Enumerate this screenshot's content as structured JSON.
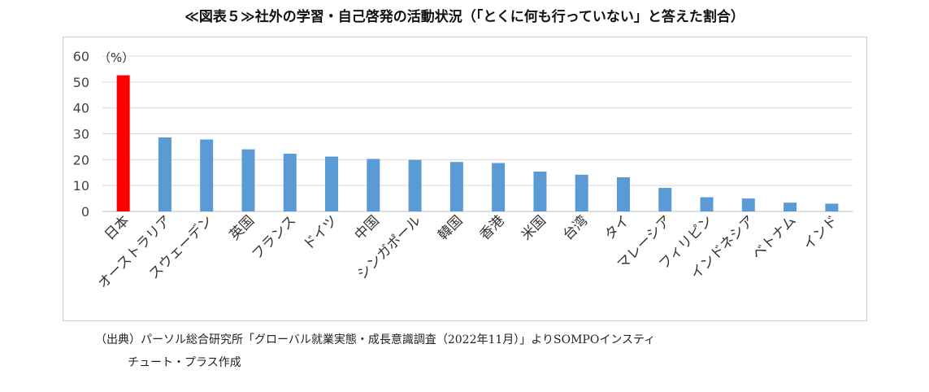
{
  "title": "≪図表５≫社外の学習・自己啓発の活動状況（「とくに何も行っていない」と答えた割合）",
  "source": {
    "line1": "（出典）パーソル総合研究所「グローバル就業実態・成長意識調査（2022年11月）」よりSOMPOインスティ",
    "line2": "チュート・プラス作成"
  },
  "chart_data": {
    "type": "bar",
    "title": "≪図表５≫社外の学習・自己啓発の活動状況（「とくに何も行っていない」と答えた割合）",
    "unit_label": "（%）",
    "categories": [
      "日本",
      "オーストラリア",
      "スウェーデン",
      "英国",
      "フランス",
      "ドイツ",
      "中国",
      "シンガポール",
      "韓国",
      "香港",
      "米国",
      "台湾",
      "タイ",
      "マレーシア",
      "フィリピン",
      "インドネシア",
      "ベトナム",
      "インド"
    ],
    "values": [
      52.6,
      28.6,
      27.8,
      24.0,
      22.3,
      21.2,
      20.3,
      19.9,
      19.1,
      18.7,
      15.4,
      14.2,
      13.2,
      9.1,
      5.5,
      5.0,
      3.4,
      3.0
    ],
    "colors": [
      "#ff0000",
      "#5b9bd5",
      "#5b9bd5",
      "#5b9bd5",
      "#5b9bd5",
      "#5b9bd5",
      "#5b9bd5",
      "#5b9bd5",
      "#5b9bd5",
      "#5b9bd5",
      "#5b9bd5",
      "#5b9bd5",
      "#5b9bd5",
      "#5b9bd5",
      "#5b9bd5",
      "#5b9bd5",
      "#5b9bd5",
      "#5b9bd5"
    ],
    "highlight_color": "#ff0000",
    "bar_color": "#5b9bd5",
    "ylim": [
      0,
      60
    ],
    "yticks": [
      0,
      10,
      20,
      30,
      40,
      50,
      60
    ],
    "grid": true,
    "legend": "none"
  }
}
